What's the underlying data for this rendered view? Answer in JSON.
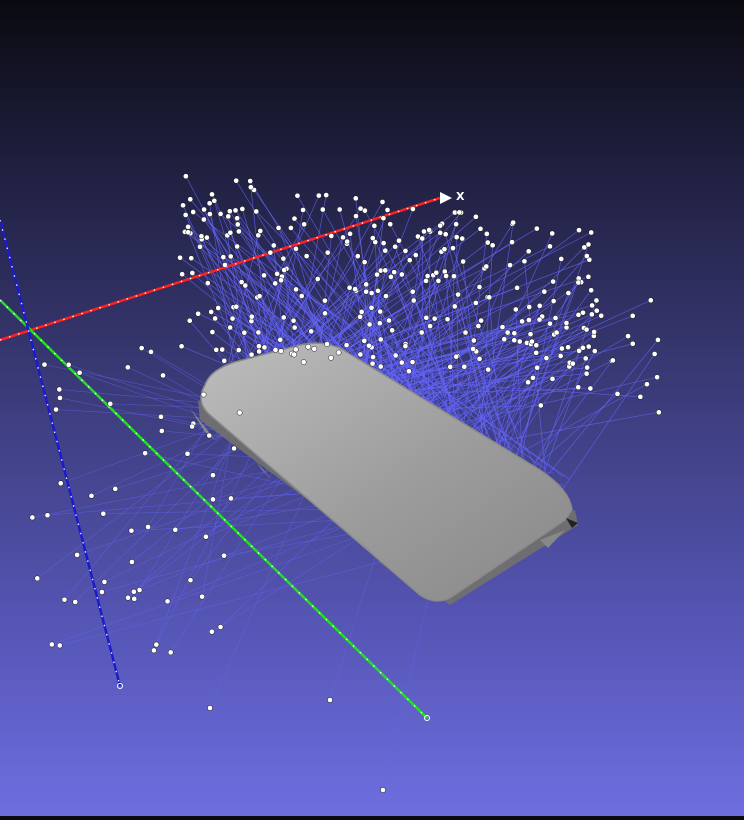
{
  "viewer": {
    "axis_x_label": "X",
    "colors": {
      "background_top": "#0a0a10",
      "background_bottom": "#6e6ee0",
      "x_axis": "#ff2020",
      "y_axis": "#20e020",
      "z_axis": "#1a1ad0",
      "rays": "#6666ff",
      "points": "#ffffff",
      "mesh": "#9a9a9a"
    }
  }
}
